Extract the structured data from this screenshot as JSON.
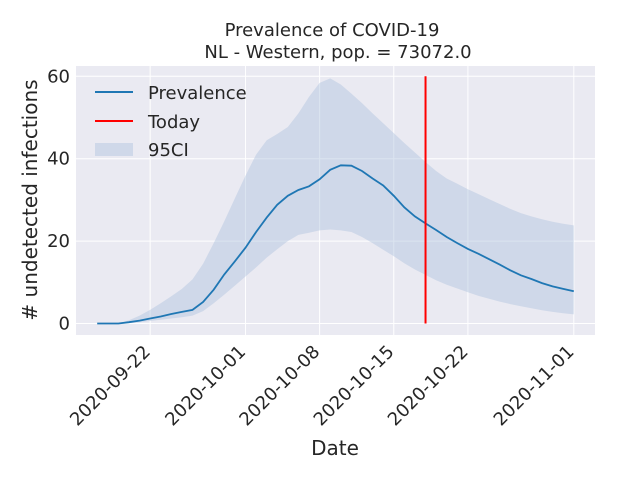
{
  "chart_data": {
    "type": "line",
    "title": "Prevalence of COVID-19",
    "subtitle": "NL - Western, pop. = 73072.0",
    "xlabel": "Date",
    "ylabel": "# undetected infections",
    "x_tick_labels": [
      "2020-09-22",
      "2020-10-01",
      "2020-10-08",
      "2020-10-15",
      "2020-10-22",
      "2020-11-01"
    ],
    "y_tick_labels": [
      "0",
      "20",
      "40",
      "60"
    ],
    "ylim": [
      -2.8,
      62.5
    ],
    "xlim": [
      "2020-09-15",
      "2020-11-03"
    ],
    "grid": true,
    "legend_position": "top-left",
    "today": "2020-10-18",
    "series": [
      {
        "name": "Prevalence",
        "color": "#1f77b4",
        "x": [
          "2020-09-17",
          "2020-09-19",
          "2020-09-20",
          "2020-09-21",
          "2020-09-22",
          "2020-09-23",
          "2020-09-24",
          "2020-09-25",
          "2020-09-26",
          "2020-09-27",
          "2020-09-28",
          "2020-09-29",
          "2020-09-30",
          "2020-10-01",
          "2020-10-02",
          "2020-10-03",
          "2020-10-04",
          "2020-10-05",
          "2020-10-06",
          "2020-10-07",
          "2020-10-08",
          "2020-10-09",
          "2020-10-10",
          "2020-10-11",
          "2020-10-12",
          "2020-10-13",
          "2020-10-14",
          "2020-10-15",
          "2020-10-16",
          "2020-10-17",
          "2020-10-18",
          "2020-10-19",
          "2020-10-20",
          "2020-10-21",
          "2020-10-22",
          "2020-10-23",
          "2020-10-24",
          "2020-10-25",
          "2020-10-26",
          "2020-10-27",
          "2020-10-28",
          "2020-10-29",
          "2020-10-30",
          "2020-10-31",
          "2020-11-01"
        ],
        "y": [
          0.0,
          0.0,
          0.3,
          0.7,
          1.2,
          1.7,
          2.3,
          2.8,
          3.3,
          5.2,
          8.2,
          11.9,
          15.1,
          18.4,
          22.2,
          25.7,
          28.8,
          31.0,
          32.4,
          33.3,
          35.0,
          37.3,
          38.4,
          38.3,
          37.0,
          35.2,
          33.5,
          31.0,
          28.2,
          26.0,
          24.3,
          22.7,
          21.0,
          19.5,
          18.1,
          16.9,
          15.6,
          14.3,
          12.9,
          11.7,
          10.8,
          9.8,
          9.0,
          8.4,
          7.8
        ]
      },
      {
        "name": "Today",
        "color": "#ff0000"
      },
      {
        "name": "95CI",
        "color": "#b0c4de",
        "x": [
          "2020-09-17",
          "2020-09-19",
          "2020-09-20",
          "2020-09-21",
          "2020-09-22",
          "2020-09-23",
          "2020-09-24",
          "2020-09-25",
          "2020-09-26",
          "2020-09-27",
          "2020-09-28",
          "2020-09-29",
          "2020-09-30",
          "2020-10-01",
          "2020-10-02",
          "2020-10-03",
          "2020-10-04",
          "2020-10-05",
          "2020-10-06",
          "2020-10-07",
          "2020-10-08",
          "2020-10-09",
          "2020-10-10",
          "2020-10-11",
          "2020-10-12",
          "2020-10-13",
          "2020-10-14",
          "2020-10-15",
          "2020-10-16",
          "2020-10-17",
          "2020-10-18",
          "2020-10-19",
          "2020-10-20",
          "2020-10-21",
          "2020-10-22",
          "2020-10-23",
          "2020-10-24",
          "2020-10-25",
          "2020-10-26",
          "2020-10-27",
          "2020-10-28",
          "2020-10-29",
          "2020-10-30",
          "2020-10-31",
          "2020-11-01"
        ],
        "lower": [
          0.0,
          0.0,
          0.1,
          0.3,
          0.6,
          0.9,
          1.2,
          1.5,
          1.9,
          3.0,
          4.9,
          7.0,
          9.2,
          11.4,
          13.6,
          16.0,
          18.0,
          20.0,
          21.5,
          22.0,
          22.6,
          22.8,
          22.6,
          22.2,
          21.0,
          19.5,
          17.9,
          16.3,
          14.6,
          13.1,
          11.8,
          10.5,
          9.4,
          8.5,
          7.6,
          6.7,
          6.0,
          5.3,
          4.7,
          4.2,
          3.7,
          3.2,
          2.8,
          2.5,
          2.2
        ],
        "upper": [
          0.0,
          0.0,
          0.8,
          1.9,
          3.3,
          4.9,
          6.6,
          8.4,
          10.7,
          14.5,
          19.5,
          24.8,
          30.4,
          35.9,
          41.0,
          44.5,
          46.0,
          47.7,
          51.0,
          55.0,
          58.4,
          59.5,
          58.0,
          55.8,
          53.5,
          51.0,
          48.6,
          46.2,
          43.8,
          41.5,
          39.2,
          37.0,
          35.2,
          33.9,
          32.6,
          31.4,
          30.2,
          29.0,
          27.8,
          26.8,
          26.0,
          25.3,
          24.7,
          24.2,
          23.8
        ]
      }
    ]
  }
}
